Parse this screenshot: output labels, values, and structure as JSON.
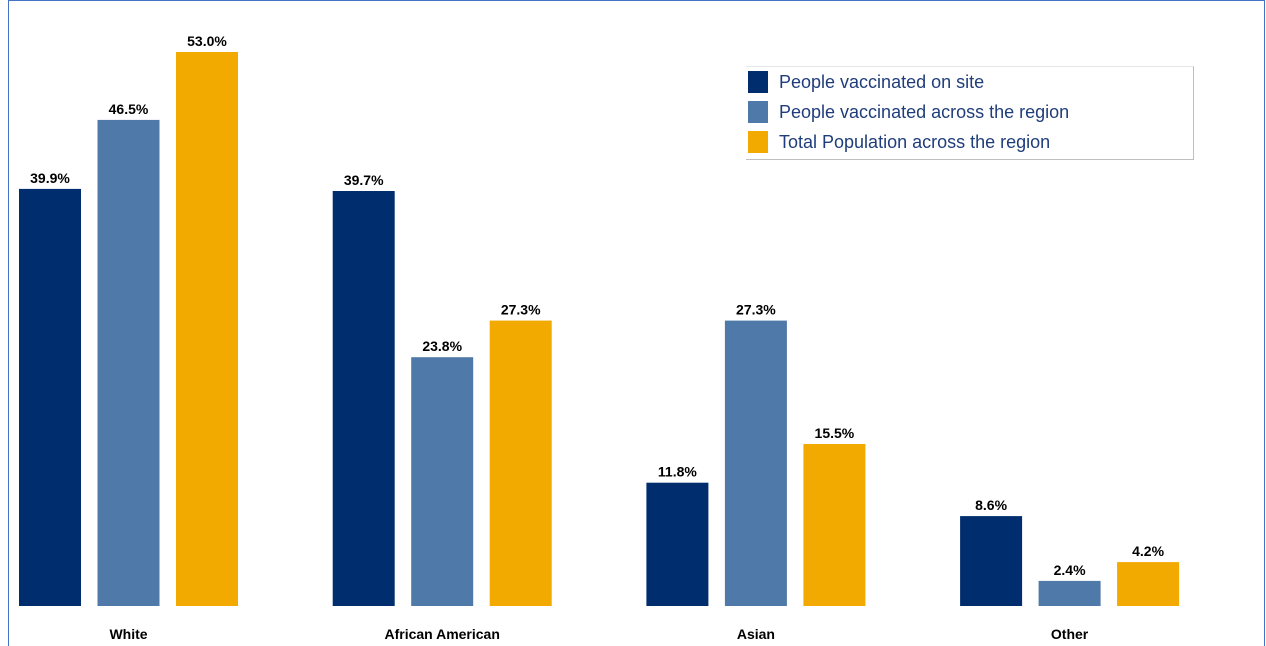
{
  "chart_data": {
    "type": "bar",
    "categories": [
      "White",
      "African American",
      "Asian",
      "Other"
    ],
    "series": [
      {
        "name": "People vaccinated on site",
        "values": [
          39.9,
          39.7,
          11.8,
          8.6
        ],
        "labels": [
          "39.9%",
          "39.7%",
          "11.8%",
          "8.6%"
        ],
        "color": "#002d6e"
      },
      {
        "name": "People vaccinated across the region",
        "values": [
          46.5,
          23.8,
          27.3,
          2.4
        ],
        "labels": [
          "46.5%",
          "23.8%",
          "27.3%",
          "2.4%"
        ],
        "color": "#4f79a8"
      },
      {
        "name": "Total Population across the region",
        "values": [
          53.0,
          27.3,
          15.5,
          4.2
        ],
        "labels": [
          "53.0%",
          "27.3%",
          "15.5%",
          "4.2%"
        ],
        "color": "#f2a900"
      }
    ],
    "title": "",
    "xlabel": "",
    "ylabel": "",
    "ylim": [
      0,
      53.0
    ],
    "grid": false,
    "y_axis_visible": false,
    "legend_position": "top-right"
  }
}
